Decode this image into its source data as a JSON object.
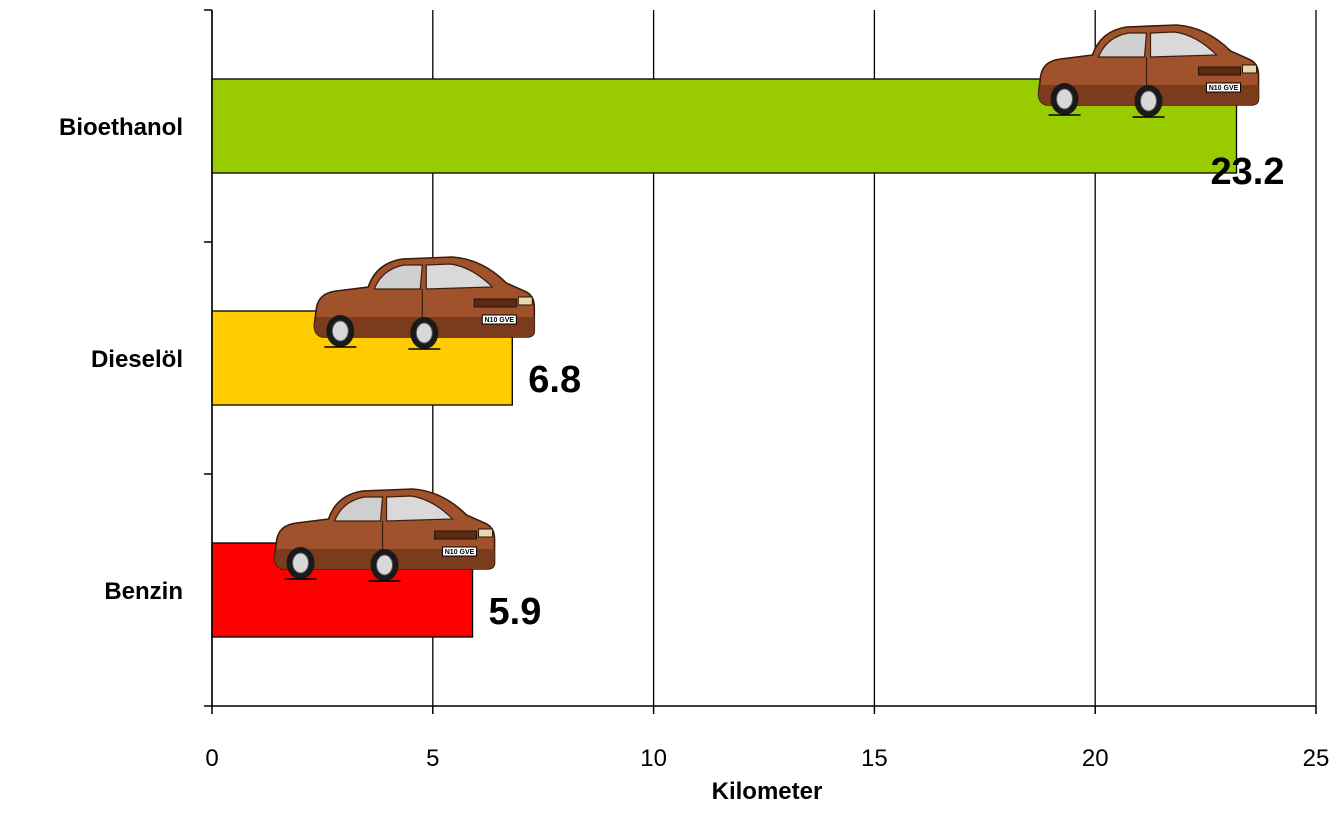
{
  "chart_data": {
    "type": "bar",
    "orientation": "horizontal",
    "categories": [
      "Bioethanol",
      "Dieselöl",
      "Benzin"
    ],
    "values": [
      23.2,
      6.8,
      5.9
    ],
    "value_labels": [
      "23.2",
      "6.8",
      "5.9"
    ],
    "bar_colors": [
      "#99cc00",
      "#ffcc00",
      "#ff0000"
    ],
    "xlabel": "Kilometer",
    "xlim": [
      0,
      25
    ],
    "xticks": [
      "0",
      "5",
      "10",
      "15",
      "20",
      "25"
    ],
    "grid": "vertical",
    "bar_icon": "car-icon",
    "car_plate": "N10 GVE"
  }
}
